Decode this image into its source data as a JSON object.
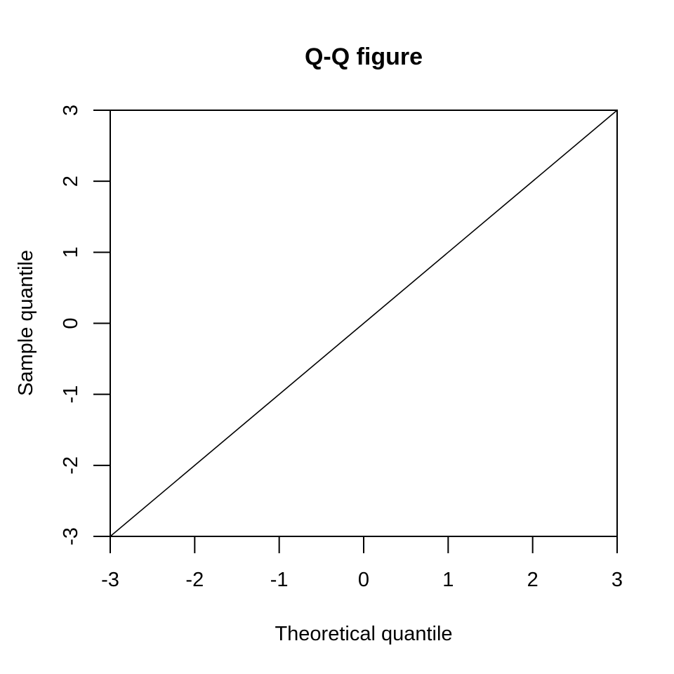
{
  "chart_data": {
    "type": "line",
    "title": "Q-Q figure",
    "xlabel": "Theoretical quantile",
    "ylabel": "Sample quantile",
    "xlim": [
      -3,
      3
    ],
    "ylim": [
      -3,
      3
    ],
    "xticks": [
      -3,
      -2,
      -1,
      0,
      1,
      2,
      3
    ],
    "yticks": [
      -3,
      -2,
      -1,
      0,
      1,
      2,
      3
    ],
    "grid": false,
    "legend": "none",
    "series": [
      {
        "x": [
          -3,
          3
        ],
        "y": [
          -3,
          3
        ],
        "color": "#000000"
      }
    ]
  }
}
